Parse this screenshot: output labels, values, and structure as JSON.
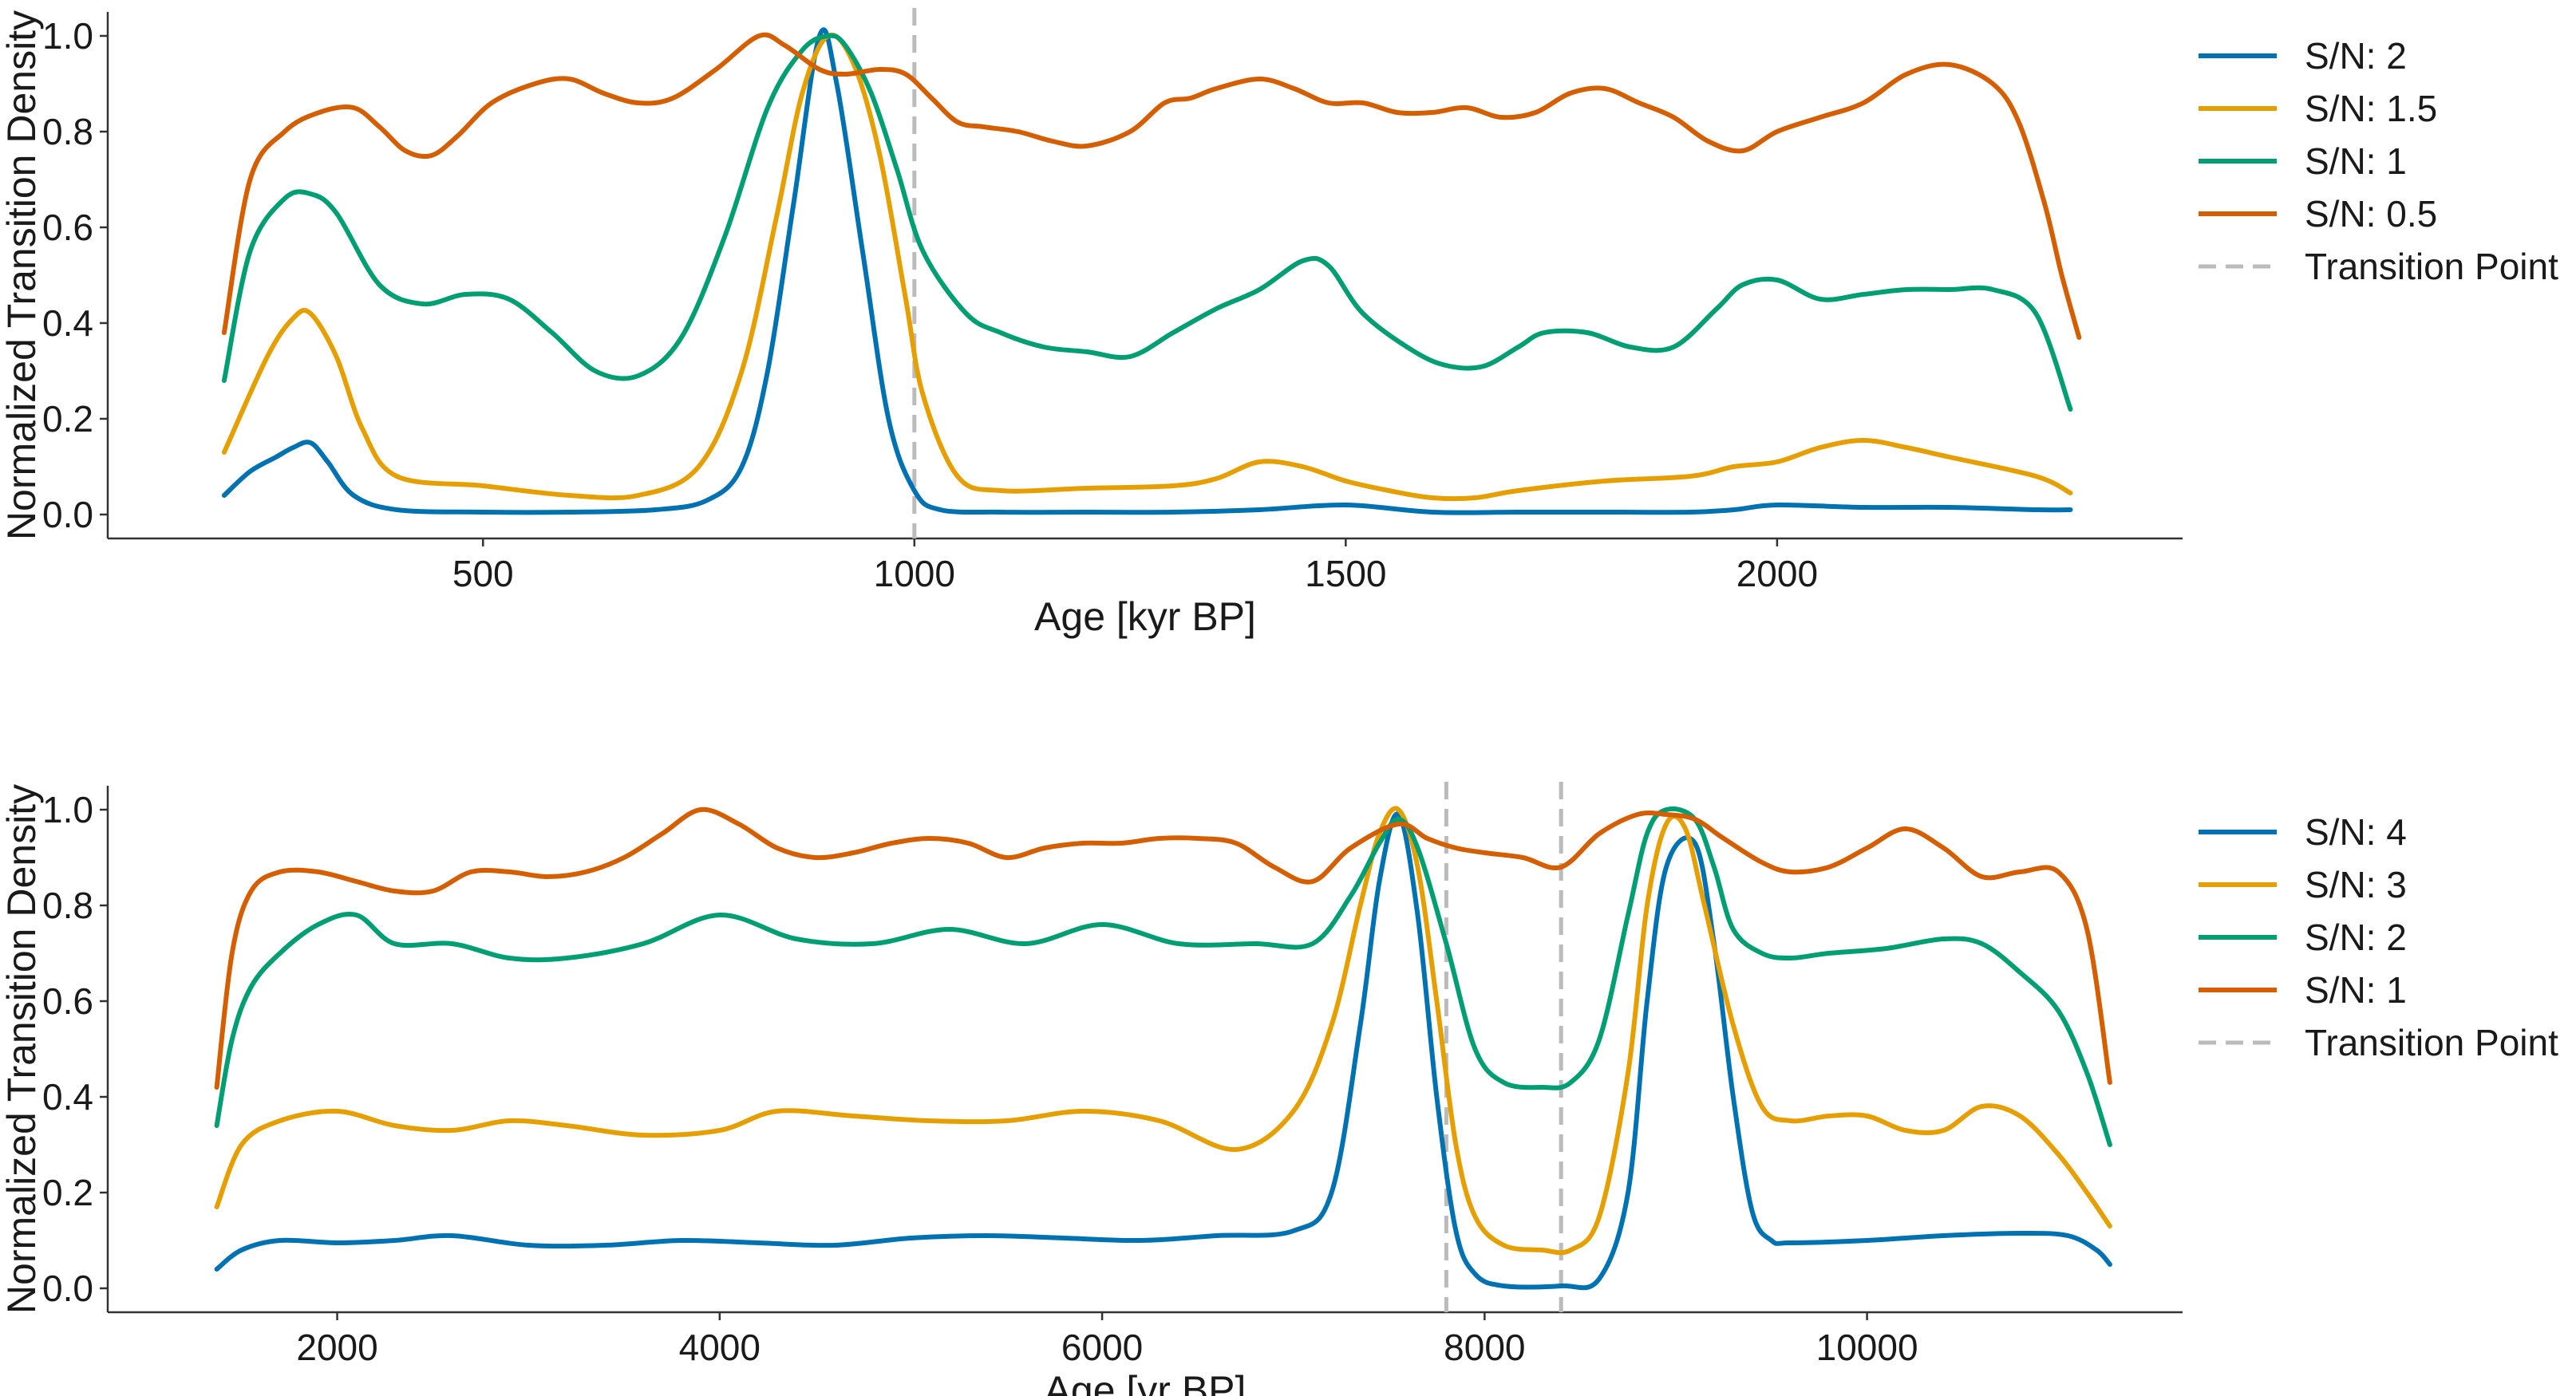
{
  "colors": {
    "blue": "#0072B2",
    "orange": "#E69F00",
    "green": "#009E73",
    "vermillion": "#D55E00",
    "transition": "#bbbbbb",
    "axis": "#333333"
  },
  "chart_data": [
    {
      "type": "line",
      "xlabel": "Age [kyr BP]",
      "ylabel": "Normalized Transition Density",
      "xlim": [
        65,
        2470
      ],
      "ylim": [
        -0.05,
        1.05
      ],
      "xticks": [
        500,
        1000,
        1500,
        2000
      ],
      "yticks": [
        0.0,
        0.2,
        0.4,
        0.6,
        0.8,
        1.0
      ],
      "xtick_labels": [
        "500",
        "1000",
        "1500",
        "2000"
      ],
      "ytick_labels": [
        "0.0",
        "0.2",
        "0.4",
        "0.6",
        "0.8",
        "1.0"
      ],
      "grid": false,
      "legend_position": "right",
      "transition_points": [
        1000
      ],
      "transition_label": "Transition Point",
      "series": [
        {
          "name": "S/N: 2",
          "color": "blue",
          "x": [
            200,
            230,
            260,
            280,
            300,
            320,
            350,
            400,
            500,
            600,
            700,
            760,
            800,
            830,
            860,
            890,
            910,
            940,
            970,
            1000,
            1030,
            1100,
            1200,
            1300,
            1400,
            1500,
            1600,
            1700,
            1800,
            1900,
            1950,
            2000,
            2100,
            2200,
            2300,
            2340
          ],
          "y": [
            0.04,
            0.09,
            0.12,
            0.14,
            0.15,
            0.11,
            0.04,
            0.01,
            0.005,
            0.005,
            0.01,
            0.03,
            0.1,
            0.3,
            0.65,
            1.0,
            0.9,
            0.55,
            0.2,
            0.05,
            0.01,
            0.005,
            0.005,
            0.005,
            0.01,
            0.02,
            0.005,
            0.005,
            0.005,
            0.005,
            0.01,
            0.02,
            0.015,
            0.015,
            0.01,
            0.01
          ]
        },
        {
          "name": "S/N: 1.5",
          "color": "orange",
          "x": [
            200,
            250,
            280,
            300,
            330,
            360,
            400,
            500,
            600,
            680,
            750,
            800,
            840,
            870,
            900,
            930,
            960,
            990,
            1010,
            1050,
            1100,
            1200,
            1300,
            1350,
            1400,
            1450,
            1500,
            1550,
            1600,
            1650,
            1700,
            1800,
            1900,
            1950,
            2000,
            2050,
            2100,
            2150,
            2200,
            2300,
            2340
          ],
          "y": [
            0.13,
            0.33,
            0.41,
            0.42,
            0.33,
            0.18,
            0.08,
            0.06,
            0.04,
            0.04,
            0.1,
            0.3,
            0.62,
            0.88,
            1.0,
            0.94,
            0.75,
            0.45,
            0.25,
            0.08,
            0.05,
            0.055,
            0.06,
            0.075,
            0.11,
            0.1,
            0.07,
            0.05,
            0.035,
            0.035,
            0.05,
            0.07,
            0.08,
            0.1,
            0.11,
            0.14,
            0.155,
            0.14,
            0.12,
            0.08,
            0.045
          ]
        },
        {
          "name": "S/N: 1",
          "color": "green",
          "x": [
            200,
            230,
            270,
            300,
            330,
            380,
            430,
            480,
            530,
            580,
            630,
            680,
            730,
            780,
            830,
            870,
            900,
            920,
            950,
            980,
            1010,
            1060,
            1100,
            1150,
            1200,
            1250,
            1300,
            1350,
            1400,
            1450,
            1480,
            1520,
            1580,
            1620,
            1660,
            1700,
            1730,
            1780,
            1830,
            1880,
            1930,
            1960,
            2000,
            2050,
            2100,
            2150,
            2200,
            2250,
            2300,
            2340
          ],
          "y": [
            0.28,
            0.55,
            0.66,
            0.67,
            0.63,
            0.48,
            0.44,
            0.46,
            0.45,
            0.38,
            0.3,
            0.29,
            0.37,
            0.58,
            0.85,
            0.97,
            1.0,
            0.98,
            0.88,
            0.72,
            0.55,
            0.42,
            0.38,
            0.35,
            0.34,
            0.33,
            0.38,
            0.43,
            0.47,
            0.53,
            0.52,
            0.42,
            0.34,
            0.31,
            0.31,
            0.35,
            0.38,
            0.38,
            0.35,
            0.35,
            0.43,
            0.48,
            0.49,
            0.45,
            0.46,
            0.47,
            0.47,
            0.47,
            0.42,
            0.22
          ]
        },
        {
          "name": "S/N: 0.5",
          "color": "vermillion",
          "x": [
            200,
            230,
            270,
            310,
            350,
            380,
            410,
            440,
            470,
            510,
            560,
            600,
            640,
            680,
            720,
            770,
            820,
            850,
            890,
            920,
            960,
            990,
            1020,
            1050,
            1080,
            1120,
            1160,
            1200,
            1250,
            1290,
            1320,
            1350,
            1400,
            1440,
            1480,
            1520,
            1560,
            1600,
            1640,
            1680,
            1720,
            1760,
            1800,
            1840,
            1880,
            1920,
            1960,
            2000,
            2050,
            2100,
            2150,
            2200,
            2250,
            2280,
            2310,
            2330,
            2350
          ],
          "y": [
            0.38,
            0.7,
            0.8,
            0.84,
            0.85,
            0.81,
            0.76,
            0.75,
            0.79,
            0.86,
            0.9,
            0.91,
            0.88,
            0.86,
            0.87,
            0.93,
            1.0,
            0.98,
            0.93,
            0.92,
            0.93,
            0.92,
            0.87,
            0.82,
            0.81,
            0.8,
            0.78,
            0.77,
            0.8,
            0.86,
            0.87,
            0.89,
            0.91,
            0.89,
            0.86,
            0.86,
            0.84,
            0.84,
            0.85,
            0.83,
            0.84,
            0.88,
            0.89,
            0.86,
            0.83,
            0.78,
            0.76,
            0.8,
            0.83,
            0.86,
            0.92,
            0.94,
            0.9,
            0.82,
            0.65,
            0.5,
            0.37
          ]
        }
      ]
    },
    {
      "type": "line",
      "xlabel": "Age [yr BP]",
      "ylabel": "Normalized Transition Density",
      "xlim": [
        800,
        11650
      ],
      "ylim": [
        -0.05,
        1.05
      ],
      "xticks": [
        2000,
        4000,
        6000,
        8000,
        10000
      ],
      "yticks": [
        0.0,
        0.2,
        0.4,
        0.6,
        0.8,
        1.0
      ],
      "xtick_labels": [
        "2000",
        "4000",
        "6000",
        "8000",
        "10000"
      ],
      "ytick_labels": [
        "0.0",
        "0.2",
        "0.4",
        "0.6",
        "0.8",
        "1.0"
      ],
      "grid": false,
      "legend_position": "right",
      "transition_points": [
        7800,
        8400
      ],
      "transition_label": "Transition Point",
      "series": [
        {
          "name": "S/N: 4",
          "color": "blue",
          "x": [
            1370,
            1500,
            1700,
            2000,
            2300,
            2600,
            3000,
            3400,
            3800,
            4200,
            4600,
            5000,
            5400,
            5800,
            6200,
            6600,
            7000,
            7200,
            7350,
            7450,
            7550,
            7650,
            7750,
            7850,
            7950,
            8100,
            8400,
            8600,
            8750,
            8850,
            8950,
            9100,
            9200,
            9300,
            9400,
            9500,
            9600,
            10000,
            10400,
            10800,
            11050,
            11200,
            11270
          ],
          "y": [
            0.04,
            0.08,
            0.1,
            0.095,
            0.1,
            0.11,
            0.09,
            0.09,
            0.1,
            0.095,
            0.09,
            0.105,
            0.11,
            0.105,
            0.1,
            0.11,
            0.12,
            0.2,
            0.55,
            0.85,
            0.99,
            0.78,
            0.4,
            0.12,
            0.03,
            0.005,
            0.005,
            0.02,
            0.2,
            0.6,
            0.88,
            0.93,
            0.72,
            0.4,
            0.16,
            0.1,
            0.095,
            0.1,
            0.11,
            0.115,
            0.11,
            0.08,
            0.05
          ]
        },
        {
          "name": "S/N: 3",
          "color": "orange",
          "x": [
            1370,
            1500,
            1700,
            2000,
            2300,
            2600,
            2900,
            3200,
            3600,
            4000,
            4300,
            4700,
            5100,
            5500,
            5900,
            6300,
            6700,
            7000,
            7200,
            7350,
            7450,
            7550,
            7650,
            7750,
            7850,
            7950,
            8100,
            8300,
            8450,
            8600,
            8750,
            8850,
            8950,
            9050,
            9150,
            9300,
            9450,
            9600,
            9800,
            10000,
            10200,
            10400,
            10600,
            10800,
            11000,
            11150,
            11270
          ],
          "y": [
            0.17,
            0.3,
            0.35,
            0.37,
            0.34,
            0.33,
            0.35,
            0.34,
            0.32,
            0.33,
            0.37,
            0.36,
            0.35,
            0.35,
            0.37,
            0.35,
            0.29,
            0.37,
            0.55,
            0.8,
            0.95,
            1.0,
            0.88,
            0.6,
            0.3,
            0.15,
            0.09,
            0.08,
            0.08,
            0.15,
            0.45,
            0.8,
            0.97,
            0.96,
            0.8,
            0.55,
            0.38,
            0.35,
            0.36,
            0.36,
            0.33,
            0.33,
            0.38,
            0.36,
            0.28,
            0.2,
            0.13
          ]
        },
        {
          "name": "S/N: 2",
          "color": "green",
          "x": [
            1370,
            1450,
            1550,
            1700,
            1900,
            2100,
            2300,
            2600,
            2900,
            3200,
            3600,
            4000,
            4400,
            4800,
            5200,
            5600,
            6000,
            6400,
            6800,
            7100,
            7300,
            7450,
            7550,
            7650,
            7800,
            7950,
            8100,
            8300,
            8450,
            8600,
            8750,
            8850,
            8950,
            9100,
            9200,
            9300,
            9450,
            9600,
            9800,
            10100,
            10400,
            10600,
            10800,
            11000,
            11150,
            11270
          ],
          "y": [
            0.34,
            0.52,
            0.63,
            0.7,
            0.76,
            0.78,
            0.72,
            0.72,
            0.69,
            0.69,
            0.72,
            0.78,
            0.73,
            0.72,
            0.75,
            0.72,
            0.76,
            0.72,
            0.72,
            0.72,
            0.82,
            0.93,
            0.98,
            0.92,
            0.72,
            0.5,
            0.43,
            0.42,
            0.43,
            0.52,
            0.78,
            0.95,
            1.0,
            0.98,
            0.88,
            0.75,
            0.7,
            0.69,
            0.7,
            0.71,
            0.73,
            0.72,
            0.66,
            0.58,
            0.45,
            0.3
          ]
        },
        {
          "name": "S/N: 1",
          "color": "vermillion",
          "x": [
            1370,
            1450,
            1550,
            1700,
            1900,
            2100,
            2300,
            2500,
            2700,
            2900,
            3100,
            3300,
            3500,
            3700,
            3900,
            4100,
            4300,
            4500,
            4700,
            4900,
            5100,
            5300,
            5500,
            5700,
            5900,
            6100,
            6300,
            6500,
            6700,
            6900,
            7100,
            7300,
            7550,
            7700,
            7850,
            8000,
            8200,
            8400,
            8600,
            8800,
            8950,
            9100,
            9250,
            9450,
            9600,
            9800,
            10000,
            10200,
            10400,
            10600,
            10800,
            11000,
            11150,
            11270
          ],
          "y": [
            0.42,
            0.7,
            0.83,
            0.87,
            0.87,
            0.85,
            0.83,
            0.83,
            0.87,
            0.87,
            0.86,
            0.87,
            0.9,
            0.95,
            1.0,
            0.97,
            0.92,
            0.9,
            0.91,
            0.93,
            0.94,
            0.93,
            0.9,
            0.92,
            0.93,
            0.93,
            0.94,
            0.94,
            0.93,
            0.88,
            0.85,
            0.92,
            0.97,
            0.94,
            0.92,
            0.91,
            0.9,
            0.88,
            0.95,
            0.99,
            0.99,
            0.98,
            0.94,
            0.89,
            0.87,
            0.88,
            0.92,
            0.96,
            0.92,
            0.86,
            0.87,
            0.87,
            0.75,
            0.43
          ]
        }
      ]
    }
  ]
}
